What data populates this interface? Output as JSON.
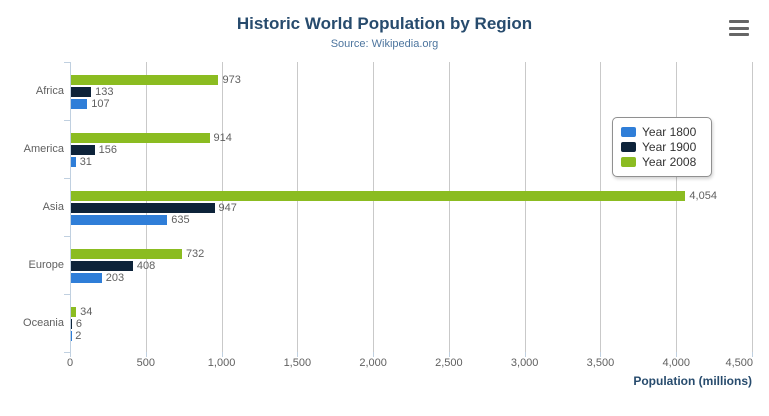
{
  "title": "Historic World Population by Region",
  "subtitle": "Source: Wikipedia.org",
  "menu": {
    "icon": "hamburger-menu-icon"
  },
  "xaxis": {
    "title": "Population (millions)",
    "tick_labels": [
      "0",
      "500",
      "1,000",
      "1,500",
      "2,000",
      "2,500",
      "3,000",
      "3,500",
      "4,000",
      "4,500"
    ]
  },
  "legend": {
    "items": [
      {
        "label": "Year 1800",
        "color": "#2f7ed8"
      },
      {
        "label": "Year 1900",
        "color": "#0d233a"
      },
      {
        "label": "Year 2008",
        "color": "#8bbc21"
      }
    ]
  },
  "chart_data": {
    "type": "bar",
    "orientation": "horizontal",
    "title": "Historic World Population by Region",
    "subtitle": "Source: Wikipedia.org",
    "categories": [
      "Africa",
      "America",
      "Asia",
      "Europe",
      "Oceania"
    ],
    "series": [
      {
        "name": "Year 1800",
        "color": "#2f7ed8",
        "values": [
          107,
          31,
          635,
          203,
          2
        ]
      },
      {
        "name": "Year 1900",
        "color": "#0d233a",
        "values": [
          133,
          156,
          947,
          408,
          6
        ]
      },
      {
        "name": "Year 2008",
        "color": "#8bbc21",
        "values": [
          973,
          914,
          4054,
          732,
          34
        ]
      }
    ],
    "series_display_order_top_to_bottom": [
      "Year 2008",
      "Year 1900",
      "Year 1800"
    ],
    "xlabel": "Population (millions)",
    "xlim": [
      0,
      4500
    ],
    "xtick_step": 500,
    "grid": true,
    "legend_position": "right-overlay",
    "data_labels": true
  },
  "colors": {
    "title": "#274b6d",
    "subtitle": "#4d759e",
    "axis_label": "#606060",
    "data_label": "#606060",
    "gridline": "#c9c9c9",
    "axis_line": "#c0d0e0",
    "axis_title": "#274b6d",
    "legend_text": "#333333",
    "legend_border": "#909090",
    "menu_icon": "#666666"
  }
}
